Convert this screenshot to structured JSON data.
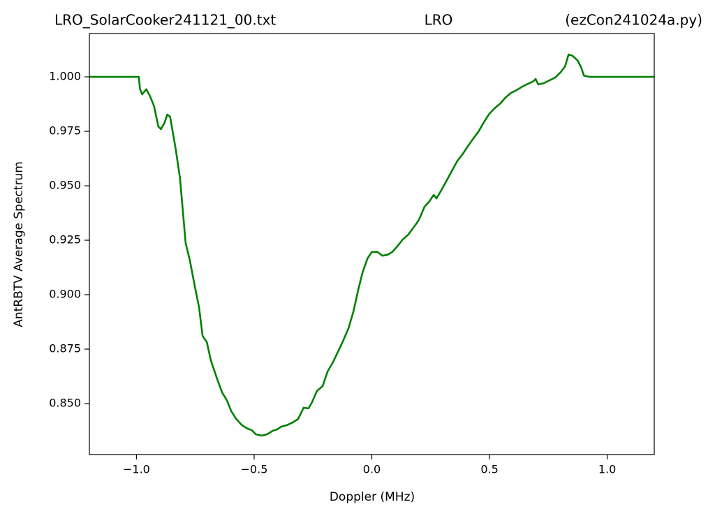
{
  "chart_data": {
    "type": "line",
    "title": "LRO_SolarCooker241121_00.txt",
    "title_center": "LRO",
    "title_right": "(ezCon241024a.py)",
    "xlabel": "Doppler (MHz)",
    "ylabel": "AntRBTV Average Spectrum",
    "xlim": [
      -1.2,
      1.2
    ],
    "ylim": [
      0.8266,
      1.0199
    ],
    "xticks": [
      {
        "value": -1,
        "label": "−1.0"
      },
      {
        "value": -0.5,
        "label": "−0.5"
      },
      {
        "value": 0,
        "label": "0.0"
      },
      0.5,
      {
        "value": 1,
        "label": "1.0"
      }
    ],
    "yticks": [
      {
        "value": 0.85,
        "label": "0.850"
      },
      {
        "value": 0.875,
        "label": "0.875"
      },
      {
        "value": 0.9,
        "label": "0.900"
      },
      {
        "value": 0.925,
        "label": "0.925"
      },
      {
        "value": 0.95,
        "label": "0.950"
      },
      {
        "value": 0.975,
        "label": "0.975"
      },
      {
        "value": 1,
        "label": "1.000"
      }
    ],
    "series": [
      {
        "color": "#008000",
        "x": [
          -1.2,
          -0.99,
          -0.985,
          -0.976,
          -0.958,
          -0.943,
          -0.925,
          -0.907,
          -0.896,
          -0.881,
          -0.869,
          -0.857,
          -0.833,
          -0.815,
          -0.791,
          -0.773,
          -0.752,
          -0.734,
          -0.719,
          -0.701,
          -0.684,
          -0.66,
          -0.636,
          -0.615,
          -0.597,
          -0.576,
          -0.552,
          -0.528,
          -0.51,
          -0.493,
          -0.469,
          -0.445,
          -0.421,
          -0.403,
          -0.385,
          -0.361,
          -0.337,
          -0.313,
          -0.29,
          -0.269,
          -0.254,
          -0.233,
          -0.209,
          -0.188,
          -0.164,
          -0.143,
          -0.122,
          -0.099,
          -0.078,
          -0.057,
          -0.039,
          -0.018,
          0.0,
          0.024,
          0.045,
          0.066,
          0.087,
          0.11,
          0.131,
          0.155,
          0.179,
          0.2,
          0.224,
          0.245,
          0.263,
          0.275,
          0.296,
          0.319,
          0.343,
          0.364,
          0.385,
          0.409,
          0.43,
          0.454,
          0.478,
          0.499,
          0.522,
          0.546,
          0.567,
          0.591,
          0.615,
          0.639,
          0.663,
          0.684,
          0.696,
          0.707,
          0.731,
          0.755,
          0.779,
          0.803,
          0.821,
          0.836,
          0.854,
          0.875,
          0.89,
          0.901,
          0.925,
          1.2
        ],
        "values": [
          1.0,
          1.0,
          0.9945,
          0.992,
          0.9943,
          0.9913,
          0.9865,
          0.9772,
          0.976,
          0.9788,
          0.9827,
          0.9817,
          0.9667,
          0.9535,
          0.9237,
          0.9157,
          0.9038,
          0.8942,
          0.8811,
          0.8782,
          0.8699,
          0.8622,
          0.8551,
          0.8513,
          0.8465,
          0.8429,
          0.8401,
          0.8385,
          0.8378,
          0.8359,
          0.8353,
          0.8359,
          0.8375,
          0.8381,
          0.8394,
          0.8401,
          0.8413,
          0.8429,
          0.8481,
          0.8478,
          0.8506,
          0.8558,
          0.858,
          0.8647,
          0.8692,
          0.874,
          0.8788,
          0.8846,
          0.8923,
          0.9026,
          0.9103,
          0.9167,
          0.9196,
          0.9196,
          0.9179,
          0.9183,
          0.9196,
          0.9224,
          0.9253,
          0.9276,
          0.9311,
          0.9343,
          0.9404,
          0.9429,
          0.9458,
          0.9442,
          0.9481,
          0.9526,
          0.9574,
          0.9615,
          0.9644,
          0.9683,
          0.9715,
          0.975,
          0.9795,
          0.983,
          0.9856,
          0.9878,
          0.9904,
          0.9926,
          0.9939,
          0.9955,
          0.9968,
          0.9978,
          0.999,
          0.9965,
          0.9971,
          0.9984,
          0.9997,
          1.0022,
          1.0048,
          1.0103,
          1.0096,
          1.0074,
          1.0042,
          1.0006,
          1.0,
          1.0
        ]
      }
    ]
  }
}
